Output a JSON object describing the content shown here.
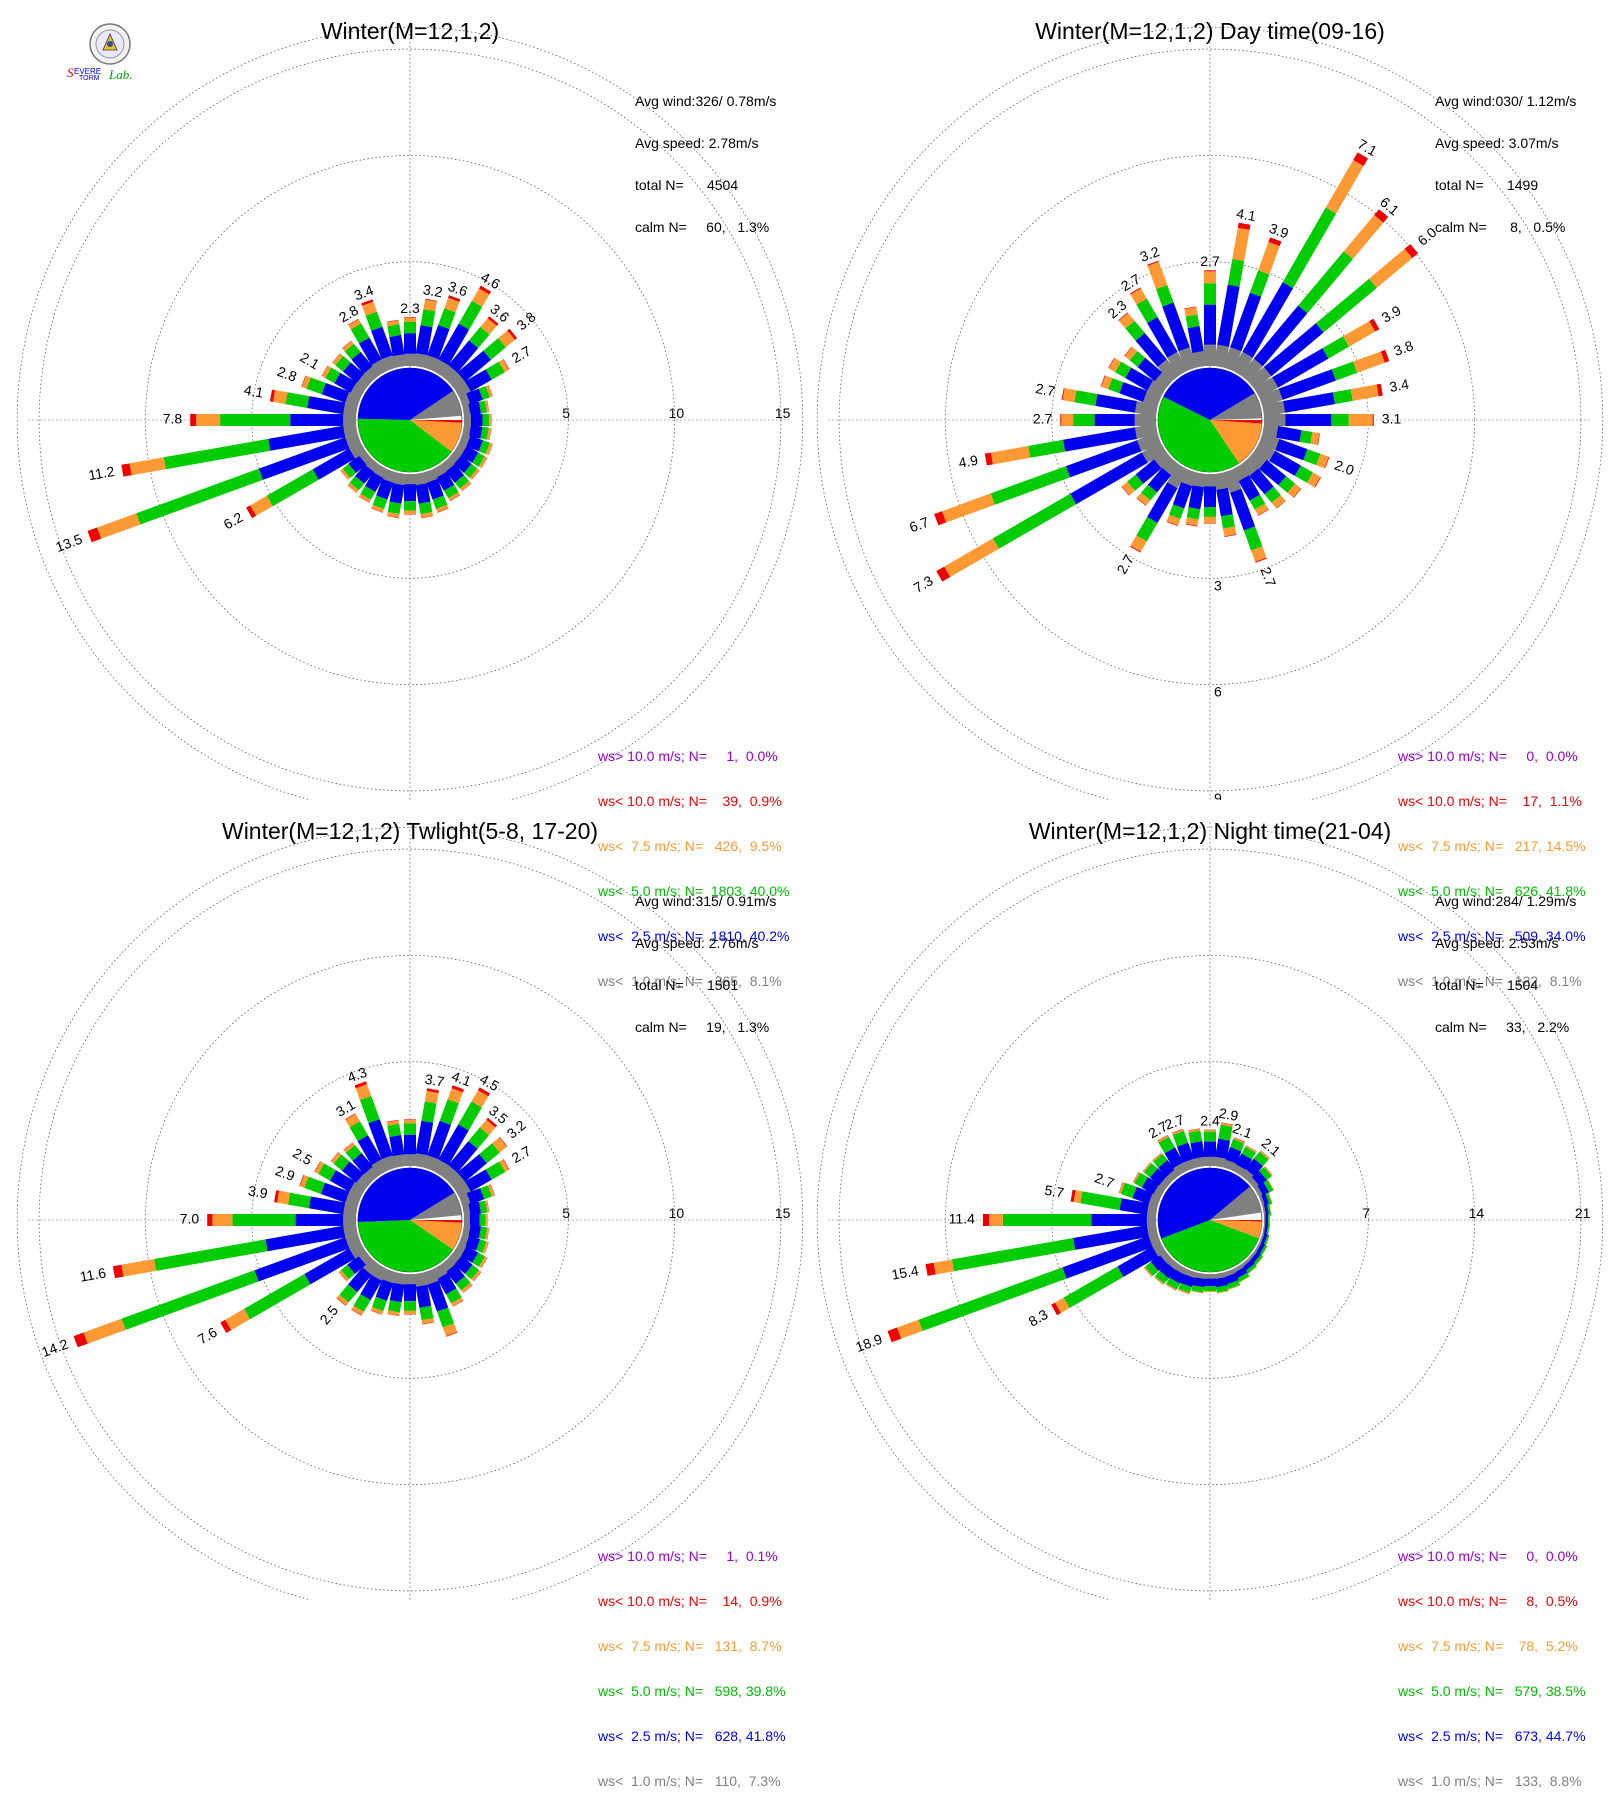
{
  "logo": {
    "text": "SevereStormLab.",
    "colors": {
      "s1": "#e00000",
      "s2": "#0000dd",
      "lab": "#00a000"
    }
  },
  "colors": {
    "calm": "#808080",
    "lt2_5": "#0000ee",
    "lt5": "#00cc00",
    "lt7_5": "#ff9933",
    "lt10": "#ee0000",
    "gt10": "#9900cc",
    "grid": "#444444"
  },
  "chart_data": [
    {
      "type": "wind-rose",
      "title": "Winter(M=12,1,2)",
      "stats": [
        "Avg wind:326/ 0.78m/s",
        "Avg speed: 2.78m/s",
        "total N=      4504",
        "calm N=     60,   1.3%"
      ],
      "ring_labels": [
        "5",
        "10",
        "15"
      ],
      "ring_label_side": "east",
      "max_radius": 17.5,
      "inner_radius": 1.7,
      "directions_deg": [
        0,
        10,
        20,
        30,
        40,
        50,
        60,
        70,
        80,
        90,
        100,
        110,
        120,
        130,
        140,
        150,
        160,
        170,
        180,
        190,
        200,
        210,
        220,
        230,
        240,
        250,
        260,
        270,
        280,
        290,
        300,
        310,
        320,
        330,
        340,
        350
      ],
      "totals": [
        2.3,
        3.2,
        3.6,
        4.6,
        3.6,
        3.8,
        2.7,
        1.5,
        1.2,
        1.3,
        1.3,
        1.5,
        1.5,
        1.5,
        1.6,
        1.7,
        2.0,
        2.1,
        1.9,
        2.1,
        2.0,
        1.8,
        1.7,
        1.5,
        6.2,
        13.5,
        11.2,
        7.8,
        4.1,
        2.8,
        2.1,
        2.0,
        2.1,
        2.8,
        3.4,
        2.2
      ],
      "labeled": [
        {
          "dir": 0,
          "value": "2.3"
        },
        {
          "dir": 10,
          "value": "3.2"
        },
        {
          "dir": 20,
          "value": "3.6"
        },
        {
          "dir": 30,
          "value": "4.6"
        },
        {
          "dir": 40,
          "value": "3.6"
        },
        {
          "dir": 50,
          "value": "3.8"
        },
        {
          "dir": 60,
          "value": "2.7"
        },
        {
          "dir": 240,
          "value": "6.2"
        },
        {
          "dir": 250,
          "value": "13.5"
        },
        {
          "dir": 260,
          "value": "11.2"
        },
        {
          "dir": 270,
          "value": "7.8"
        },
        {
          "dir": 280,
          "value": "4.1"
        },
        {
          "dir": 290,
          "value": "2.8"
        },
        {
          "dir": 300,
          "value": "2.1"
        },
        {
          "dir": 330,
          "value": "2.8"
        },
        {
          "dir": 340,
          "value": "3.4"
        }
      ],
      "pie_percent": {
        "calm": 8.1,
        "lt2_5": 40.2,
        "lt5": 40.0,
        "lt7_5": 9.5,
        "lt10": 0.9,
        "gt10": 0.0
      },
      "legend": [
        {
          "key": "gt10",
          "text": "ws> 10.0 m/s; N=     1,  0.0%"
        },
        {
          "key": "lt10",
          "text": "ws< 10.0 m/s; N=    39,  0.9%"
        },
        {
          "key": "lt7_5",
          "text": "ws<  7.5 m/s; N=   426,  9.5%"
        },
        {
          "key": "lt5",
          "text": "ws<  5.0 m/s; N=  1803, 40.0%"
        },
        {
          "key": "lt2_5",
          "text": "ws<  2.5 m/s; N=  1810, 40.2%"
        },
        {
          "key": "calm",
          "text": "ws<  1.0 m/s; N=   365,  8.1%"
        }
      ]
    },
    {
      "type": "wind-rose",
      "title": "Winter(M=12,1,2) Day time(09-16)",
      "stats": [
        "Avg wind:030/ 1.12m/s",
        "Avg speed: 3.07m/s",
        "total N=      1499",
        "calm N=      8,   0.5%"
      ],
      "ring_labels": [
        "3",
        "6",
        "9"
      ],
      "ring_label_side": "south",
      "max_radius": 10.5,
      "inner_radius": 1.0,
      "directions_deg": [
        0,
        10,
        20,
        30,
        40,
        50,
        60,
        70,
        80,
        90,
        100,
        110,
        120,
        130,
        140,
        150,
        160,
        170,
        180,
        190,
        200,
        210,
        220,
        230,
        240,
        250,
        260,
        270,
        280,
        290,
        300,
        310,
        320,
        330,
        340,
        350
      ],
      "totals": [
        2.7,
        4.1,
        3.9,
        7.1,
        6.1,
        6.0,
        3.9,
        3.8,
        3.4,
        3.1,
        1.6,
        2.0,
        2.0,
        1.7,
        1.6,
        1.5,
        2.7,
        1.8,
        1.4,
        1.5,
        1.6,
        2.7,
        1.5,
        1.6,
        7.3,
        6.7,
        4.9,
        2.7,
        2.7,
        1.7,
        1.7,
        1.5,
        2.3,
        2.7,
        3.2,
        1.7
      ],
      "labeled": [
        {
          "dir": 0,
          "value": "2.7"
        },
        {
          "dir": 10,
          "value": "4.1"
        },
        {
          "dir": 20,
          "value": "3.9"
        },
        {
          "dir": 30,
          "value": "7.1"
        },
        {
          "dir": 40,
          "value": "6.1"
        },
        {
          "dir": 50,
          "value": "6.0"
        },
        {
          "dir": 60,
          "value": "3.9"
        },
        {
          "dir": 70,
          "value": "3.8"
        },
        {
          "dir": 80,
          "value": "3.4"
        },
        {
          "dir": 90,
          "value": "3.1"
        },
        {
          "dir": 110,
          "value": "2.0"
        },
        {
          "dir": 160,
          "value": "2.7"
        },
        {
          "dir": 210,
          "value": "2.7"
        },
        {
          "dir": 240,
          "value": "7.3"
        },
        {
          "dir": 250,
          "value": "6.7"
        },
        {
          "dir": 260,
          "value": "4.9"
        },
        {
          "dir": 270,
          "value": "2.7"
        },
        {
          "dir": 280,
          "value": "2.7"
        },
        {
          "dir": 320,
          "value": "2.3"
        },
        {
          "dir": 330,
          "value": "2.7"
        },
        {
          "dir": 340,
          "value": "3.2"
        }
      ],
      "pie_percent": {
        "calm": 8.1,
        "lt2_5": 34.0,
        "lt5": 41.8,
        "lt7_5": 14.5,
        "lt10": 1.1,
        "gt10": 0.0
      },
      "legend": [
        {
          "key": "gt10",
          "text": "ws> 10.0 m/s; N=     0,  0.0%"
        },
        {
          "key": "lt10",
          "text": "ws< 10.0 m/s; N=    17,  1.1%"
        },
        {
          "key": "lt7_5",
          "text": "ws<  7.5 m/s; N=   217, 14.5%"
        },
        {
          "key": "lt5",
          "text": "ws<  5.0 m/s; N=   626, 41.8%"
        },
        {
          "key": "lt2_5",
          "text": "ws<  2.5 m/s; N=   509, 34.0%"
        },
        {
          "key": "calm",
          "text": "ws<  1.0 m/s; N=   122,  8.1%"
        }
      ]
    },
    {
      "type": "wind-rose",
      "title": "Winter(M=12,1,2) Twlight(5-8, 17-20)",
      "stats": [
        "Avg wind:315/ 0.91m/s",
        "Avg speed: 2.76m/s",
        "total N=      1501",
        "calm N=     19,   1.3%"
      ],
      "ring_labels": [
        "5",
        "10",
        "15"
      ],
      "ring_label_side": "east",
      "max_radius": 17.5,
      "inner_radius": 1.7,
      "directions_deg": [
        0,
        10,
        20,
        30,
        40,
        50,
        60,
        70,
        80,
        90,
        100,
        110,
        120,
        130,
        140,
        150,
        160,
        170,
        180,
        190,
        200,
        210,
        220,
        230,
        240,
        250,
        260,
        270,
        280,
        290,
        300,
        310,
        320,
        330,
        340,
        350
      ],
      "totals": [
        2.2,
        3.7,
        4.1,
        4.5,
        3.5,
        3.2,
        2.7,
        1.6,
        1.2,
        1.1,
        1.2,
        1.3,
        1.5,
        1.6,
        1.7,
        2.0,
        3.2,
        2.4,
        1.9,
        2.0,
        2.1,
        2.5,
        2.5,
        1.6,
        7.6,
        14.2,
        11.6,
        7.0,
        3.9,
        2.9,
        2.5,
        2.1,
        2.0,
        3.1,
        4.3,
        2.2
      ],
      "labeled": [
        {
          "dir": 10,
          "value": "3.7"
        },
        {
          "dir": 20,
          "value": "4.1"
        },
        {
          "dir": 30,
          "value": "4.5"
        },
        {
          "dir": 40,
          "value": "3.5"
        },
        {
          "dir": 50,
          "value": "3.2"
        },
        {
          "dir": 60,
          "value": "2.7"
        },
        {
          "dir": 220,
          "value": "2.5"
        },
        {
          "dir": 240,
          "value": "7.6"
        },
        {
          "dir": 250,
          "value": "14.2"
        },
        {
          "dir": 260,
          "value": "11.6"
        },
        {
          "dir": 270,
          "value": "7.0"
        },
        {
          "dir": 280,
          "value": "3.9"
        },
        {
          "dir": 290,
          "value": "2.9"
        },
        {
          "dir": 300,
          "value": "2.5"
        },
        {
          "dir": 330,
          "value": "3.1"
        },
        {
          "dir": 340,
          "value": "4.3"
        }
      ],
      "pie_percent": {
        "calm": 7.3,
        "lt2_5": 41.8,
        "lt5": 39.8,
        "lt7_5": 8.7,
        "lt10": 0.9,
        "gt10": 0.1
      },
      "legend": [
        {
          "key": "gt10",
          "text": "ws> 10.0 m/s; N=     1,  0.1%"
        },
        {
          "key": "lt10",
          "text": "ws< 10.0 m/s; N=    14,  0.9%"
        },
        {
          "key": "lt7_5",
          "text": "ws<  7.5 m/s; N=   131,  8.7%"
        },
        {
          "key": "lt5",
          "text": "ws<  5.0 m/s; N=   598, 39.8%"
        },
        {
          "key": "lt2_5",
          "text": "ws<  2.5 m/s; N=   628, 41.8%"
        },
        {
          "key": "calm",
          "text": "ws<  1.0 m/s; N=   110,  7.3%"
        }
      ]
    },
    {
      "type": "wind-rose",
      "title": "Winter(M=12,1,2) Night time(21-04)",
      "stats": [
        "Avg wind:284/ 1.29m/s",
        "Avg speed: 2.53m/s",
        "total N=      1504",
        "calm N=     33,   2.2%"
      ],
      "ring_labels": [
        "7",
        "14",
        "21"
      ],
      "ring_label_side": "east",
      "max_radius": 24.5,
      "inner_radius": 3.7,
      "directions_deg": [
        0,
        10,
        20,
        30,
        40,
        50,
        60,
        70,
        80,
        90,
        100,
        110,
        120,
        130,
        140,
        150,
        160,
        170,
        180,
        190,
        200,
        210,
        220,
        230,
        240,
        250,
        260,
        270,
        280,
        290,
        300,
        310,
        320,
        330,
        340,
        350
      ],
      "totals": [
        2.4,
        2.9,
        2.1,
        1.9,
        2.1,
        1.5,
        1.1,
        0.7,
        0.5,
        0.4,
        0.4,
        0.5,
        0.6,
        0.7,
        0.8,
        1.0,
        1.2,
        1.3,
        1.2,
        1.3,
        1.5,
        1.6,
        1.7,
        1.8,
        8.3,
        18.9,
        15.4,
        11.4,
        5.7,
        2.7,
        2.1,
        1.9,
        1.9,
        2.7,
        2.7,
        2.5
      ],
      "labeled": [
        {
          "dir": 0,
          "value": "2.4"
        },
        {
          "dir": 10,
          "value": "2.9"
        },
        {
          "dir": 20,
          "value": "2.1"
        },
        {
          "dir": 40,
          "value": "2.1"
        },
        {
          "dir": 240,
          "value": "8.3"
        },
        {
          "dir": 250,
          "value": "18.9"
        },
        {
          "dir": 260,
          "value": "15.4"
        },
        {
          "dir": 270,
          "value": "11.4"
        },
        {
          "dir": 280,
          "value": "5.7"
        },
        {
          "dir": 290,
          "value": "2.7"
        },
        {
          "dir": 330,
          "value": "2.7"
        },
        {
          "dir": 340,
          "value": "2.7"
        }
      ],
      "pie_percent": {
        "calm": 8.8,
        "lt2_5": 44.7,
        "lt5": 38.5,
        "lt7_5": 5.2,
        "lt10": 0.5,
        "gt10": 0.0
      },
      "legend": [
        {
          "key": "gt10",
          "text": "ws> 10.0 m/s; N=     0,  0.0%"
        },
        {
          "key": "lt10",
          "text": "ws< 10.0 m/s; N=     8,  0.5%"
        },
        {
          "key": "lt7_5",
          "text": "ws<  7.5 m/s; N=    78,  5.2%"
        },
        {
          "key": "lt5",
          "text": "ws<  5.0 m/s; N=   579, 38.5%"
        },
        {
          "key": "lt2_5",
          "text": "ws<  2.5 m/s; N=   673, 44.7%"
        },
        {
          "key": "calm",
          "text": "ws<  1.0 m/s; N=   133,  8.8%"
        }
      ]
    }
  ]
}
